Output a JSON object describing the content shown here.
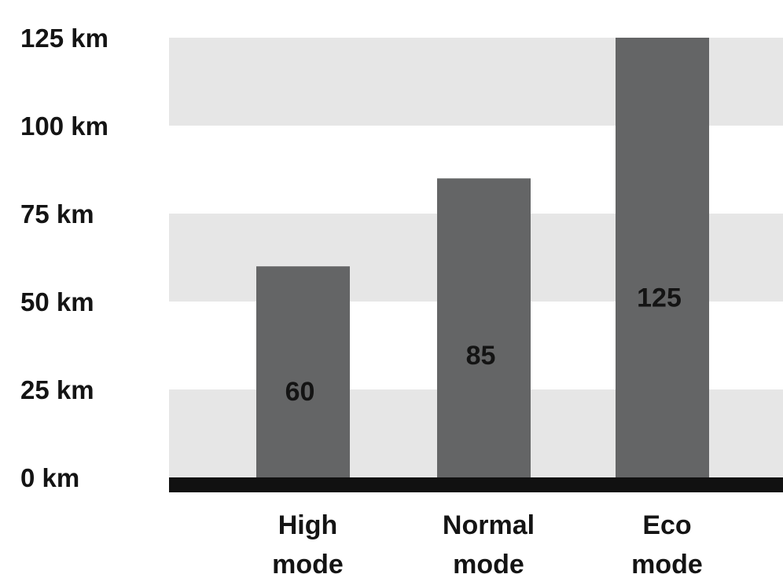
{
  "chart_data": {
    "type": "bar",
    "title": "",
    "xlabel": "",
    "ylabel": "",
    "categories": [
      [
        "High",
        "mode"
      ],
      [
        "Normal",
        "mode"
      ],
      [
        "Eco",
        "mode"
      ]
    ],
    "values": [
      60,
      85,
      125
    ],
    "data_labels": [
      "60",
      "85",
      "125"
    ],
    "ylim": [
      0,
      125
    ],
    "yticks": [
      0,
      25,
      50,
      75,
      100,
      125
    ],
    "ytick_labels": [
      "0 km",
      "25 km",
      "50 km",
      "75 km",
      "100 km",
      "125 km"
    ],
    "grid": "alternating horizontal bands",
    "legend": "none",
    "colors": {
      "bar": "#646566",
      "band": "#e6e6e6",
      "background": "#ffffff",
      "baseline": "#111111",
      "text": "#141414"
    }
  }
}
